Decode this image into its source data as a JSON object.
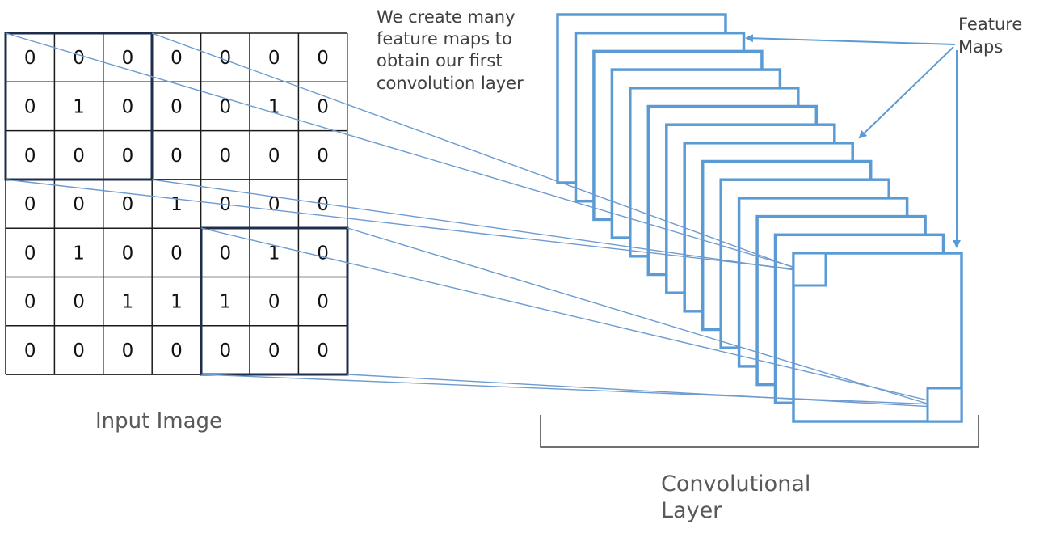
{
  "input_image": {
    "caption": "Input Image",
    "grid": [
      [
        0,
        0,
        0,
        0,
        0,
        0,
        0
      ],
      [
        0,
        1,
        0,
        0,
        0,
        1,
        0
      ],
      [
        0,
        0,
        0,
        0,
        0,
        0,
        0
      ],
      [
        0,
        0,
        0,
        1,
        0,
        0,
        0
      ],
      [
        0,
        1,
        0,
        0,
        0,
        1,
        0
      ],
      [
        0,
        0,
        1,
        1,
        1,
        0,
        0
      ],
      [
        0,
        0,
        0,
        0,
        0,
        0,
        0
      ]
    ],
    "highlighted_windows": [
      "top-left 3x3",
      "bottom-right 3x3"
    ]
  },
  "annotation": {
    "lines": [
      "We create many",
      "feature maps to",
      "obtain our first",
      "convolution layer"
    ]
  },
  "feature_maps_label": {
    "lines": [
      "Feature",
      "Maps"
    ]
  },
  "conv_layer_label": {
    "lines": [
      "Convolutional",
      "Layer"
    ]
  },
  "feature_map_count": 14,
  "colors": {
    "feature_map_stroke": "#5b9bd5",
    "connector": "#6d9bd0",
    "grid": "#1a1a1a"
  }
}
